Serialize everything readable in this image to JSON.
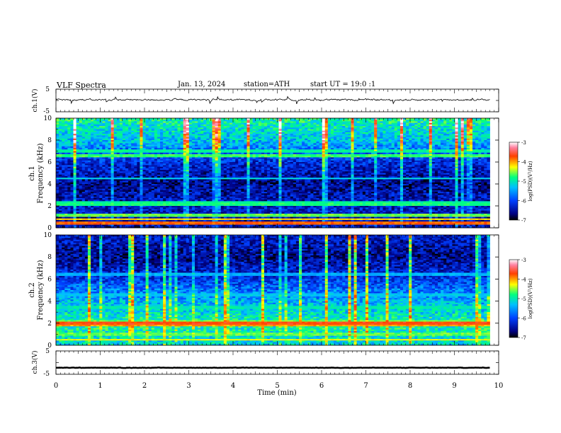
{
  "header": {
    "title": "VLF Spectra",
    "date": "Jan. 13, 2024",
    "station": "station=ATH",
    "start": "start UT =  19:0  :1"
  },
  "chart_data": [
    {
      "type": "line",
      "name": "ch1-waveform",
      "ylabel": "ch.1(V)",
      "ylim": [
        -5,
        5
      ],
      "yticks": [
        "5",
        "-5"
      ],
      "xlim": [
        0,
        10
      ],
      "data_extent_min": 9.8,
      "baseline": 0.3,
      "noise_amplitude": 1.2,
      "spike_amplitude": 3.5,
      "color": "#000000"
    },
    {
      "type": "heatmap",
      "name": "ch1-spectrogram",
      "ylabel": "ch.1 Frequency (kHz)",
      "ylabel_line1": "ch.1",
      "ylabel_line2": "Frequency (kHz)",
      "ylim": [
        0,
        10
      ],
      "yticks": [
        "0",
        "2",
        "4",
        "6",
        "8",
        "10"
      ],
      "xlim": [
        0,
        10
      ],
      "data_extent_min": 9.8,
      "colorbar": {
        "label": "log(PSD)(V²/Hz)",
        "range": [
          -7,
          -3
        ],
        "ticks": [
          "-3",
          "-4",
          "-5",
          "-6",
          "-7"
        ]
      },
      "bands_khz": [
        {
          "f": 0.4,
          "level": -3.8
        },
        {
          "f": 0.8,
          "level": -4.2
        },
        {
          "f": 1.1,
          "level": -4.6
        },
        {
          "f": 2.1,
          "level": -4.8
        },
        {
          "f": 2.3,
          "level": -4.9
        },
        {
          "f": 6.6,
          "level": -4.7
        },
        {
          "f": 7.0,
          "level": -4.9
        },
        {
          "f": 4.5,
          "level": -5.2
        }
      ],
      "background_profile": [
        {
          "f": 0,
          "level": -6.5
        },
        {
          "f": 2,
          "level": -6.3
        },
        {
          "f": 4,
          "level": -6.6
        },
        {
          "f": 6,
          "level": -6.2
        },
        {
          "f": 8,
          "level": -5.3
        },
        {
          "f": 10,
          "level": -4.9
        }
      ]
    },
    {
      "type": "heatmap",
      "name": "ch2-spectrogram",
      "ylabel": "ch.2 Frequency (kHz)",
      "ylabel_line1": "ch.2",
      "ylabel_line2": "Frequency (kHz)",
      "ylim": [
        0,
        10
      ],
      "yticks": [
        "0",
        "2",
        "4",
        "6",
        "8",
        "10"
      ],
      "xlim": [
        0,
        10
      ],
      "data_extent_min": 9.8,
      "colorbar": {
        "label": "log(PSD)(V²/Hz)",
        "range": [
          -7,
          -3
        ],
        "ticks": [
          "-3",
          "-4",
          "-5",
          "-6",
          "-7"
        ]
      },
      "bands_khz": [
        {
          "f": 0.5,
          "level": -4.3
        },
        {
          "f": 1.0,
          "level": -4.6
        },
        {
          "f": 1.9,
          "level": -4.0
        },
        {
          "f": 2.0,
          "level": -3.7
        },
        {
          "f": 2.2,
          "level": -4.6
        },
        {
          "f": 3.4,
          "level": -5.0
        },
        {
          "f": 4.6,
          "level": -5.3
        },
        {
          "f": 6.4,
          "level": -5.4
        }
      ],
      "background_profile": [
        {
          "f": 0,
          "level": -5.2
        },
        {
          "f": 2,
          "level": -4.9
        },
        {
          "f": 4,
          "level": -5.4
        },
        {
          "f": 6,
          "level": -6.1
        },
        {
          "f": 8,
          "level": -6.6
        },
        {
          "f": 10,
          "level": -6.3
        }
      ]
    },
    {
      "type": "line",
      "name": "ch3-waveform",
      "ylabel": "ch.3(V)",
      "ylim": [
        -5,
        5
      ],
      "yticks": [
        "5",
        "-5"
      ],
      "xlim": [
        0,
        10
      ],
      "data_extent_min": 9.8,
      "baseline": -2.2,
      "noise_amplitude": 0.3,
      "spike_amplitude": 0,
      "color": "#000000"
    }
  ],
  "x_axis": {
    "label": "Time (min)",
    "range": [
      0,
      10
    ],
    "ticks": [
      "0",
      "1",
      "2",
      "3",
      "4",
      "5",
      "6",
      "7",
      "8",
      "9",
      "10"
    ]
  }
}
